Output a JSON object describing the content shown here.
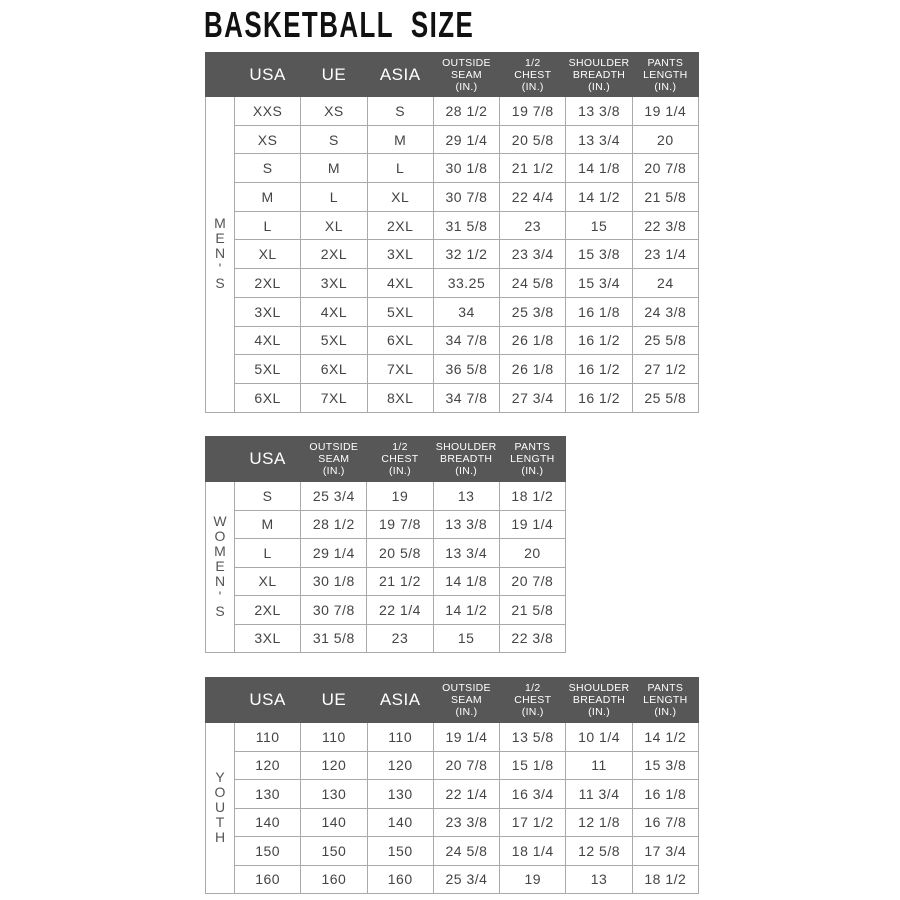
{
  "title": "BASKETBALL  SIZE",
  "colors": {
    "header_bg": "#575757",
    "header_text": "#ffffff",
    "grid": "#aaaaaa"
  },
  "tables": [
    {
      "group_label": "MEN'S",
      "columns": [
        "USA",
        "UE",
        "ASIA",
        "OUTSIDE\nSEAM\n(IN.)",
        "1/2\nCHEST\n(IN.)",
        "SHOULDER\nBREADTH\n(IN.)",
        "PANTS\nLENGTH\n(IN.)"
      ],
      "rows": [
        [
          "XXS",
          "XS",
          "S",
          "28 1/2",
          "19 7/8",
          "13 3/8",
          "19 1/4"
        ],
        [
          "XS",
          "S",
          "M",
          "29 1/4",
          "20 5/8",
          "13 3/4",
          "20"
        ],
        [
          "S",
          "M",
          "L",
          "30 1/8",
          "21 1/2",
          "14 1/8",
          "20 7/8"
        ],
        [
          "M",
          "L",
          "XL",
          "30 7/8",
          "22 4/4",
          "14 1/2",
          "21 5/8"
        ],
        [
          "L",
          "XL",
          "2XL",
          "31 5/8",
          "23",
          "15",
          "22 3/8"
        ],
        [
          "XL",
          "2XL",
          "3XL",
          "32 1/2",
          "23 3/4",
          "15 3/8",
          "23 1/4"
        ],
        [
          "2XL",
          "3XL",
          "4XL",
          "33.25",
          "24 5/8",
          "15 3/4",
          "24"
        ],
        [
          "3XL",
          "4XL",
          "5XL",
          "34",
          "25 3/8",
          "16 1/8",
          "24 3/8"
        ],
        [
          "4XL",
          "5XL",
          "6XL",
          "34 7/8",
          "26 1/8",
          "16 1/2",
          "25 5/8"
        ],
        [
          "5XL",
          "6XL",
          "7XL",
          "36 5/8",
          "26 1/8",
          "16 1/2",
          "27 1/2"
        ],
        [
          "6XL",
          "7XL",
          "8XL",
          "34 7/8",
          "27 3/4",
          "16 1/2",
          "25 5/8"
        ]
      ]
    },
    {
      "group_label": "WOMEN'S",
      "columns": [
        "USA",
        "OUTSIDE\nSEAM\n(IN.)",
        "1/2\nCHEST\n(IN.)",
        "SHOULDER\nBREADTH\n(IN.)",
        "PANTS\nLENGTH\n(IN.)"
      ],
      "rows": [
        [
          "S",
          "25 3/4",
          "19",
          "13",
          "18 1/2"
        ],
        [
          "M",
          "28 1/2",
          "19 7/8",
          "13 3/8",
          "19 1/4"
        ],
        [
          "L",
          "29 1/4",
          "20 5/8",
          "13 3/4",
          "20"
        ],
        [
          "XL",
          "30 1/8",
          "21 1/2",
          "14 1/8",
          "20 7/8"
        ],
        [
          "2XL",
          "30 7/8",
          "22 1/4",
          "14 1/2",
          "21 5/8"
        ],
        [
          "3XL",
          "31 5/8",
          "23",
          "15",
          "22 3/8"
        ]
      ]
    },
    {
      "group_label": "YOUTH",
      "columns": [
        "USA",
        "UE",
        "ASIA",
        "OUTSIDE\nSEAM\n(IN.)",
        "1/2\nCHEST\n(IN.)",
        "SHOULDER\nBREADTH\n(IN.)",
        "PANTS\nLENGTH\n(IN.)"
      ],
      "rows": [
        [
          "110",
          "110",
          "110",
          "19 1/4",
          "13 5/8",
          "10 1/4",
          "14 1/2"
        ],
        [
          "120",
          "120",
          "120",
          "20 7/8",
          "15 1/8",
          "11",
          "15 3/8"
        ],
        [
          "130",
          "130",
          "130",
          "22 1/4",
          "16 3/4",
          "11 3/4",
          "16 1/8"
        ],
        [
          "140",
          "140",
          "140",
          "23 3/8",
          "17 1/2",
          "12 1/8",
          "16 7/8"
        ],
        [
          "150",
          "150",
          "150",
          "24 5/8",
          "18 1/4",
          "12 5/8",
          "17 3/4"
        ],
        [
          "160",
          "160",
          "160",
          "25 3/4",
          "19",
          "13",
          "18 1/2"
        ]
      ]
    }
  ]
}
